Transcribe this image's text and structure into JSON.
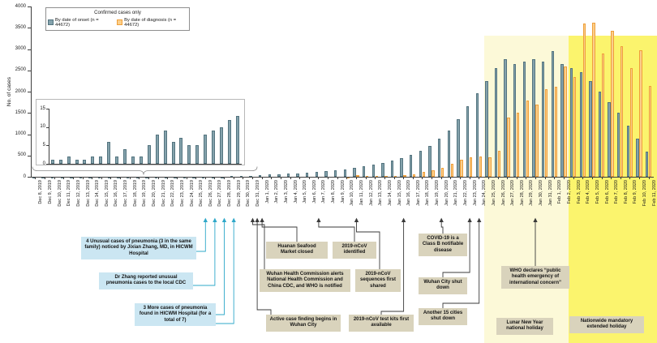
{
  "legend": {
    "title": "Confirmed cases only",
    "onset_label": "By date of onset (n = 44672)",
    "diagnosis_label": "By date of diagnosis (n = 44672)"
  },
  "colors": {
    "onset_fill": "#84a2ac",
    "onset_border": "#54747f",
    "diagnosis_fill": "#fbcf8b",
    "diagnosis_border": "#ef9f3b",
    "band_lunar": "#fcf9d8",
    "band_extended": "#fbf46d",
    "annotation_blue": "#cbe6f2",
    "annotation_tan": "#d9d3bc",
    "arrow_blue": "#2fa8c9",
    "arrow_dark": "#3a3a3a"
  },
  "chart_data": {
    "type": "bar",
    "title": "",
    "ylabel": "No. of cases",
    "ylim": [
      0,
      4000
    ],
    "yticks": [
      0,
      500,
      1000,
      1500,
      2000,
      2500,
      3000,
      3500,
      4000
    ],
    "legend_position": "top-left-inside",
    "grid": false,
    "categories": [
      "Dec 8, 2019",
      "Dec 9, 2019",
      "Dec 10, 2019",
      "Dec 11, 2019",
      "Dec 12, 2019",
      "Dec 13, 2019",
      "Dec 14, 2019",
      "Dec 15, 2019",
      "Dec 16, 2019",
      "Dec 17, 2019",
      "Dec 18, 2019",
      "Dec 19, 2019",
      "Dec 20, 2019",
      "Dec 21, 2019",
      "Dec 22, 2019",
      "Dec 23, 2019",
      "Dec 24, 2019",
      "Dec 25, 2019",
      "Dec 26, 2019",
      "Dec 27, 2019",
      "Dec 28, 2019",
      "Dec 29, 2019",
      "Dec 30, 2019",
      "Dec 31, 2019",
      "Jan 1, 2020",
      "Jan 2, 2020",
      "Jan 3, 2020",
      "Jan 4, 2020",
      "Jan 5, 2020",
      "Jan 6, 2020",
      "Jan 7, 2020",
      "Jan 8, 2020",
      "Jan 9, 2020",
      "Jan 10, 2020",
      "Jan 11, 2020",
      "Jan 12, 2020",
      "Jan 13, 2020",
      "Jan 14, 2020",
      "Jan 15, 2020",
      "Jan 16, 2020",
      "Jan 17, 2020",
      "Jan 18, 2020",
      "Jan 19, 2020",
      "Jan 20, 2020",
      "Jan 21, 2020",
      "Jan 22, 2020",
      "Jan 23, 2020",
      "Jan 24, 2020",
      "Jan 25, 2020",
      "Jan 26, 2020",
      "Jan 27, 2020",
      "Jan 28, 2020",
      "Jan 29, 2020",
      "Jan 30, 2020",
      "Jan 31, 2020",
      "Feb 1, 2020",
      "Feb 2, 2020",
      "Feb 3, 2020",
      "Feb 4, 2020",
      "Feb 5, 2020",
      "Feb 6, 2020",
      "Feb 7, 2020",
      "Feb 8, 2020",
      "Feb 9, 2020",
      "Feb 10, 2020",
      "Feb 11, 2020"
    ],
    "series": [
      {
        "name": "By date of onset (n = 44672)",
        "color": "#84a2ac",
        "border": "#54747f",
        "values": [
          1,
          1,
          2,
          1,
          1,
          2,
          2,
          6,
          2,
          4,
          2,
          2,
          5,
          8,
          9,
          6,
          7,
          5,
          5,
          8,
          9,
          10,
          12,
          13,
          40,
          50,
          60,
          70,
          85,
          95,
          110,
          135,
          155,
          180,
          215,
          250,
          290,
          330,
          385,
          445,
          515,
          605,
          720,
          890,
          1080,
          1350,
          1650,
          1960,
          2250,
          2560,
          2760,
          2650,
          2700,
          2760,
          2700,
          2950,
          2650,
          2550,
          2450,
          2250,
          2000,
          1750,
          1500,
          1200,
          900,
          600
        ]
      },
      {
        "name": "By date of diagnosis (n = 44672)",
        "color": "#fbcf8b",
        "border": "#ef9f3b",
        "values": [
          0,
          0,
          0,
          0,
          0,
          0,
          0,
          0,
          0,
          0,
          0,
          0,
          0,
          0,
          0,
          0,
          0,
          0,
          0,
          0,
          0,
          0,
          0,
          0,
          0,
          0,
          0,
          0,
          0,
          0,
          0,
          0,
          0,
          5,
          45,
          25,
          10,
          15,
          20,
          30,
          65,
          105,
          150,
          210,
          310,
          405,
          455,
          485,
          460,
          610,
          1395,
          1500,
          1795,
          1700,
          2050,
          2110,
          2590,
          2350,
          3600,
          3610,
          2900,
          3430,
          3060,
          2550,
          2980,
          2130
        ]
      }
    ],
    "inset": {
      "range": [
        "Dec 8, 2019",
        "Dec 31, 2019"
      ],
      "ylim": [
        0,
        15
      ],
      "yticks": [
        0,
        5,
        10,
        15
      ]
    }
  },
  "bands": [
    {
      "name": "lunar-new-year-holiday",
      "start": "Jan 25, 2020",
      "end": "Feb 2, 2020",
      "color": "#fcf9d8"
    },
    {
      "name": "nationwide-extended-holiday",
      "start": "Feb 3, 2020",
      "end": "Feb 11, 2020",
      "color": "#fbf46d"
    }
  ],
  "annotations": [
    {
      "id": "unusual-cases",
      "style": "blue",
      "text": "4 Unusual cases of pneumonia (3 in the same family) noticed by Jixian Zhang, MD, in HICWM Hospital",
      "targets": [
        "Dec 26, 2019"
      ]
    },
    {
      "id": "zhang-report",
      "style": "blue",
      "text": "Dr Zhang reported unusual pneumonia cases to the local CDC",
      "targets": [
        "Dec 27, 2019"
      ]
    },
    {
      "id": "more-cases",
      "style": "blue",
      "text": "3 More cases of pneumonia found in HICWM Hospital (for a total of 7)",
      "targets": [
        "Dec 28, 2019",
        "Dec 29, 2019"
      ]
    },
    {
      "id": "market-closed",
      "style": "tan",
      "text": "Huanan Seafood Market closed",
      "targets": [
        "Jan 1, 2020"
      ]
    },
    {
      "id": "ncov-identified",
      "style": "tan",
      "text": "2019-nCoV identified",
      "targets": [
        "Jan 7, 2020"
      ]
    },
    {
      "id": "whc-alerts",
      "style": "tan",
      "text": "Wuhan Health Commission alerts National Health Commission and China CDC, and WHO is notified",
      "targets": [
        "Dec 31, 2019"
      ]
    },
    {
      "id": "sequences-shared",
      "style": "tan",
      "text": "2019-nCoV sequences first shared",
      "targets": [
        "Jan 11, 2020"
      ]
    },
    {
      "id": "case-finding",
      "style": "tan",
      "text": "Active case finding begins in Wuhan City",
      "targets": [
        "Jan 1, 2020"
      ]
    },
    {
      "id": "test-kits",
      "style": "tan",
      "text": "2019-nCoV test kits first available",
      "targets": [
        "Jan 16, 2020"
      ]
    },
    {
      "id": "class-b",
      "style": "tan",
      "text": "COVID-19 is a Class B notifiable disease",
      "targets": [
        "Jan 20, 2020"
      ]
    },
    {
      "id": "wuhan-shutdown",
      "style": "tan",
      "text": "Wuhan City shut down",
      "targets": [
        "Jan 23, 2020"
      ]
    },
    {
      "id": "cities-shutdown",
      "style": "tan",
      "text": "Another 15 cities shut down",
      "targets": [
        "Jan 24, 2020"
      ]
    },
    {
      "id": "who-phec",
      "style": "tan",
      "text": "WHO declares “public health emergency of international concern”",
      "targets": [
        "Jan 30, 2020"
      ]
    },
    {
      "id": "lunar-holiday-label",
      "style": "tan",
      "text": "Lunar New Year national holiday",
      "targets": []
    },
    {
      "id": "extended-holiday-label",
      "style": "tan",
      "text": "Nationwide mandatory extended holiday",
      "targets": []
    }
  ]
}
